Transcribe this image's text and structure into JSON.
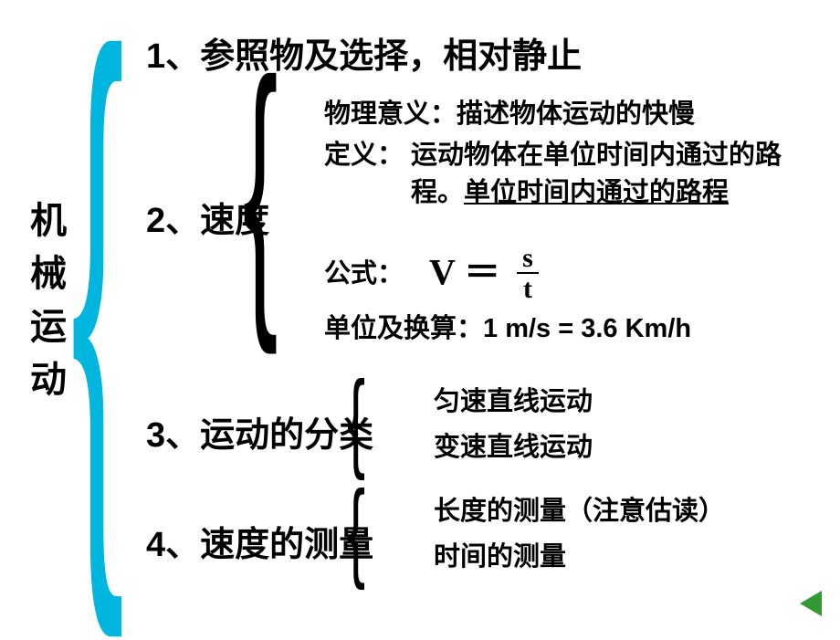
{
  "root": {
    "title": "机械运动"
  },
  "colors": {
    "brace_main": "#00b5de",
    "text": "#000000",
    "nav": "#339933",
    "background": "#ffffff"
  },
  "fonts": {
    "title_size": 40,
    "item_size": 38,
    "sub_size": 29,
    "formula_size": 40
  },
  "items": {
    "i1": {
      "label": "1、参照物及选择，相对静止"
    },
    "i2": {
      "label": "2、速度"
    },
    "i3": {
      "label": "3、运动的分类"
    },
    "i4": {
      "label": "4、速度的测量"
    }
  },
  "speed": {
    "meaning_label": "物理意义：",
    "meaning_text": "描述物体运动的快慢",
    "def_label": "定义：",
    "def_text_1": "运动物体在单位时间内通过的路程。",
    "def_text_2": "单位时间内通过的路程",
    "formula_label": "公式：",
    "formula_v": "V",
    "formula_eq": "＝",
    "formula_num": "s",
    "formula_den": "t",
    "unit_label": "单位及换算：",
    "unit_value": "1 m/s = 3.6 Km/h"
  },
  "motion_types": {
    "t1": "匀速直线运动",
    "t2": "变速直线运动"
  },
  "measurement": {
    "m1": "长度的测量（注意估读）",
    "m2": "时间的测量"
  },
  "nav": {
    "back_icon": "back-arrow"
  }
}
